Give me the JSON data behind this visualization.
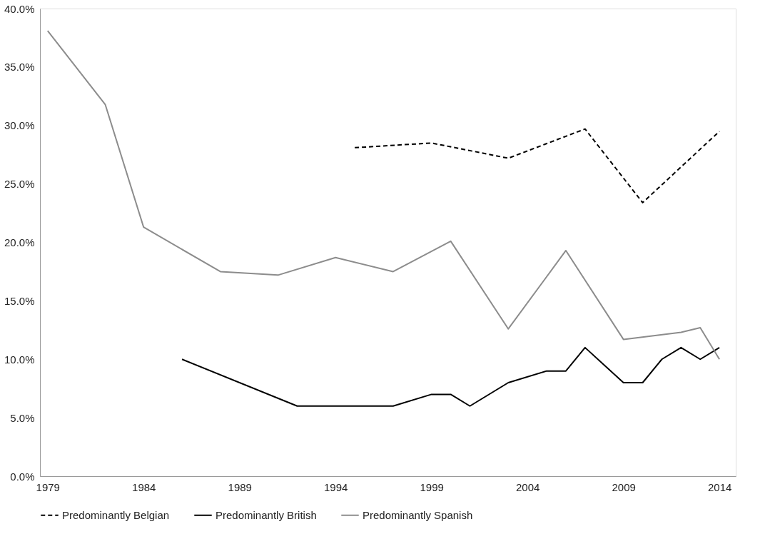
{
  "chart_data": {
    "type": "line",
    "legend": "bottom",
    "grid": false,
    "marker": "none",
    "xlim": [
      1978.6,
      2014.85
    ],
    "xticks": [
      1979,
      1984,
      1989,
      1994,
      1999,
      2004,
      2009,
      2014
    ],
    "ylim": [
      0,
      40
    ],
    "yticks": [
      {
        "value": 0,
        "label": "0.0%"
      },
      {
        "value": 5,
        "label": "5.0%"
      },
      {
        "value": 10,
        "label": "10.0%"
      },
      {
        "value": 15,
        "label": "15.0%"
      },
      {
        "value": 20,
        "label": "20.0%"
      },
      {
        "value": 25,
        "label": "25.0%"
      },
      {
        "value": 30,
        "label": "30.0%"
      },
      {
        "value": 35,
        "label": "35.0%"
      },
      {
        "value": 40,
        "label": "40.0%"
      }
    ],
    "series": [
      {
        "name": "Predominantly Belgian",
        "color": "#000000",
        "line_style": "dashed",
        "x": [
          1995,
          1999,
          2003,
          2007,
          2010,
          2014
        ],
        "values": [
          28.1,
          28.5,
          27.2,
          29.7,
          23.4,
          29.5
        ]
      },
      {
        "name": "Predominantly British",
        "color": "#000000",
        "line_style": "solid",
        "x": [
          1986,
          1992,
          1997,
          1999,
          2000,
          2001,
          2003,
          2005,
          2006,
          2007,
          2009,
          2010,
          2011,
          2012,
          2013,
          2014
        ],
        "values": [
          10.0,
          6.0,
          6.0,
          7.0,
          7.0,
          6.0,
          8.0,
          9.0,
          9.0,
          11.0,
          8.0,
          8.0,
          10.0,
          11.0,
          10.0,
          11.0
        ]
      },
      {
        "name": "Predominantly Spanish",
        "color": "#8c8c8c",
        "line_style": "solid",
        "x": [
          1979,
          1982,
          1984,
          1988,
          1991,
          1994,
          1997,
          2000,
          2003,
          2006,
          2009,
          2012,
          2013,
          2014
        ],
        "values": [
          38.1,
          31.8,
          21.3,
          17.5,
          17.2,
          18.7,
          17.5,
          20.1,
          12.6,
          19.3,
          11.7,
          12.3,
          12.7,
          10.0
        ]
      }
    ]
  }
}
